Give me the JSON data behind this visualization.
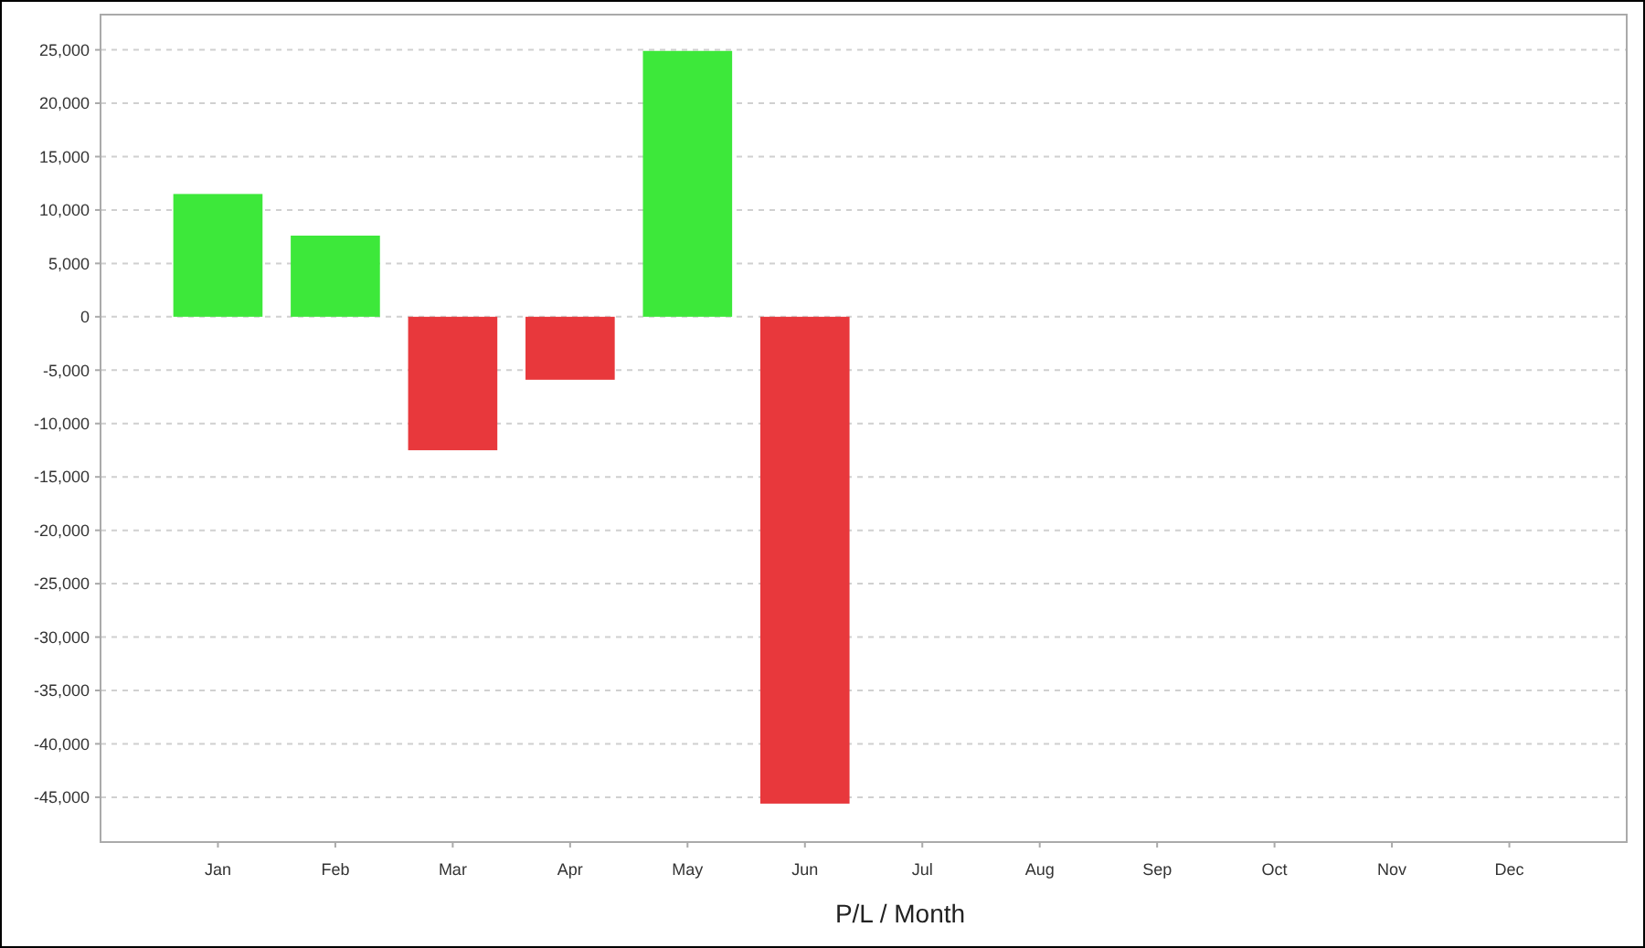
{
  "chart_data": {
    "type": "bar",
    "xlabel": "P/L / Month",
    "categories": [
      "Jan",
      "Feb",
      "Mar",
      "Apr",
      "May",
      "Jun",
      "Jul",
      "Aug",
      "Sep",
      "Oct",
      "Nov",
      "Dec"
    ],
    "values": [
      11500,
      7600,
      -12500,
      -5900,
      24900,
      -45600,
      null,
      null,
      null,
      null,
      null,
      null
    ],
    "colors": [
      "#3de83a",
      "#3de83a",
      "#e8383c",
      "#e8383c",
      "#3de83a",
      "#e8383c",
      null,
      null,
      null,
      null,
      null,
      null
    ],
    "ylim": [
      -49200,
      28300
    ],
    "yticks": [
      {
        "value": -45000,
        "label": "-45,000"
      },
      {
        "value": -40000,
        "label": "-40,000"
      },
      {
        "value": -35000,
        "label": "-35,000"
      },
      {
        "value": -30000,
        "label": "-30,000"
      },
      {
        "value": -25000,
        "label": "-25,000"
      },
      {
        "value": -20000,
        "label": "-20,000"
      },
      {
        "value": -15000,
        "label": "-15,000"
      },
      {
        "value": -10000,
        "label": "-10,000"
      },
      {
        "value": -5000,
        "label": "-5,000"
      },
      0,
      {
        "value": 5000,
        "label": "5,000"
      },
      {
        "value": 10000,
        "label": "10,000"
      },
      {
        "value": 15000,
        "label": "15,000"
      },
      {
        "value": 20000,
        "label": "20,000"
      },
      {
        "value": 25000,
        "label": "25,000"
      }
    ],
    "grid": "y"
  }
}
